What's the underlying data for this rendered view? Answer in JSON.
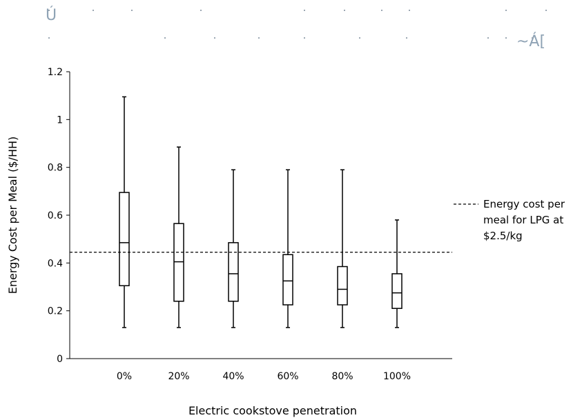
{
  "header_artifacts": {
    "left": "Ú",
    "right": "~Á["
  },
  "chart_data": {
    "type": "boxplot",
    "xlabel": "Electric cookstove penetration",
    "ylabel": "Energy Cost per Meal ($/HH)",
    "ylim": [
      0,
      1.2
    ],
    "yticks": [
      0,
      0.2,
      0.4,
      0.6,
      0.8,
      1,
      1.2
    ],
    "ytick_labels": [
      "0",
      "0.2",
      "0.4",
      "0.6",
      "0.8",
      "1",
      "1.2"
    ],
    "categories": [
      "0%",
      "20%",
      "40%",
      "60%",
      "80%",
      "100%"
    ],
    "boxes": [
      {
        "min": 0.13,
        "q1": 0.305,
        "median": 0.485,
        "q3": 0.695,
        "max": 1.095
      },
      {
        "min": 0.13,
        "q1": 0.24,
        "median": 0.405,
        "q3": 0.565,
        "max": 0.885
      },
      {
        "min": 0.13,
        "q1": 0.24,
        "median": 0.355,
        "q3": 0.485,
        "max": 0.79
      },
      {
        "min": 0.13,
        "q1": 0.225,
        "median": 0.325,
        "q3": 0.435,
        "max": 0.79
      },
      {
        "min": 0.13,
        "q1": 0.225,
        "median": 0.29,
        "q3": 0.385,
        "max": 0.79
      },
      {
        "min": 0.13,
        "q1": 0.21,
        "median": 0.275,
        "q3": 0.355,
        "max": 0.58
      }
    ],
    "reference_line": {
      "value": 0.445,
      "style": "dashed",
      "label_lines": [
        "Energy cost per",
        "meal for LPG at",
        "$2.5/kg"
      ]
    },
    "legend_position": "right",
    "grid": false
  }
}
